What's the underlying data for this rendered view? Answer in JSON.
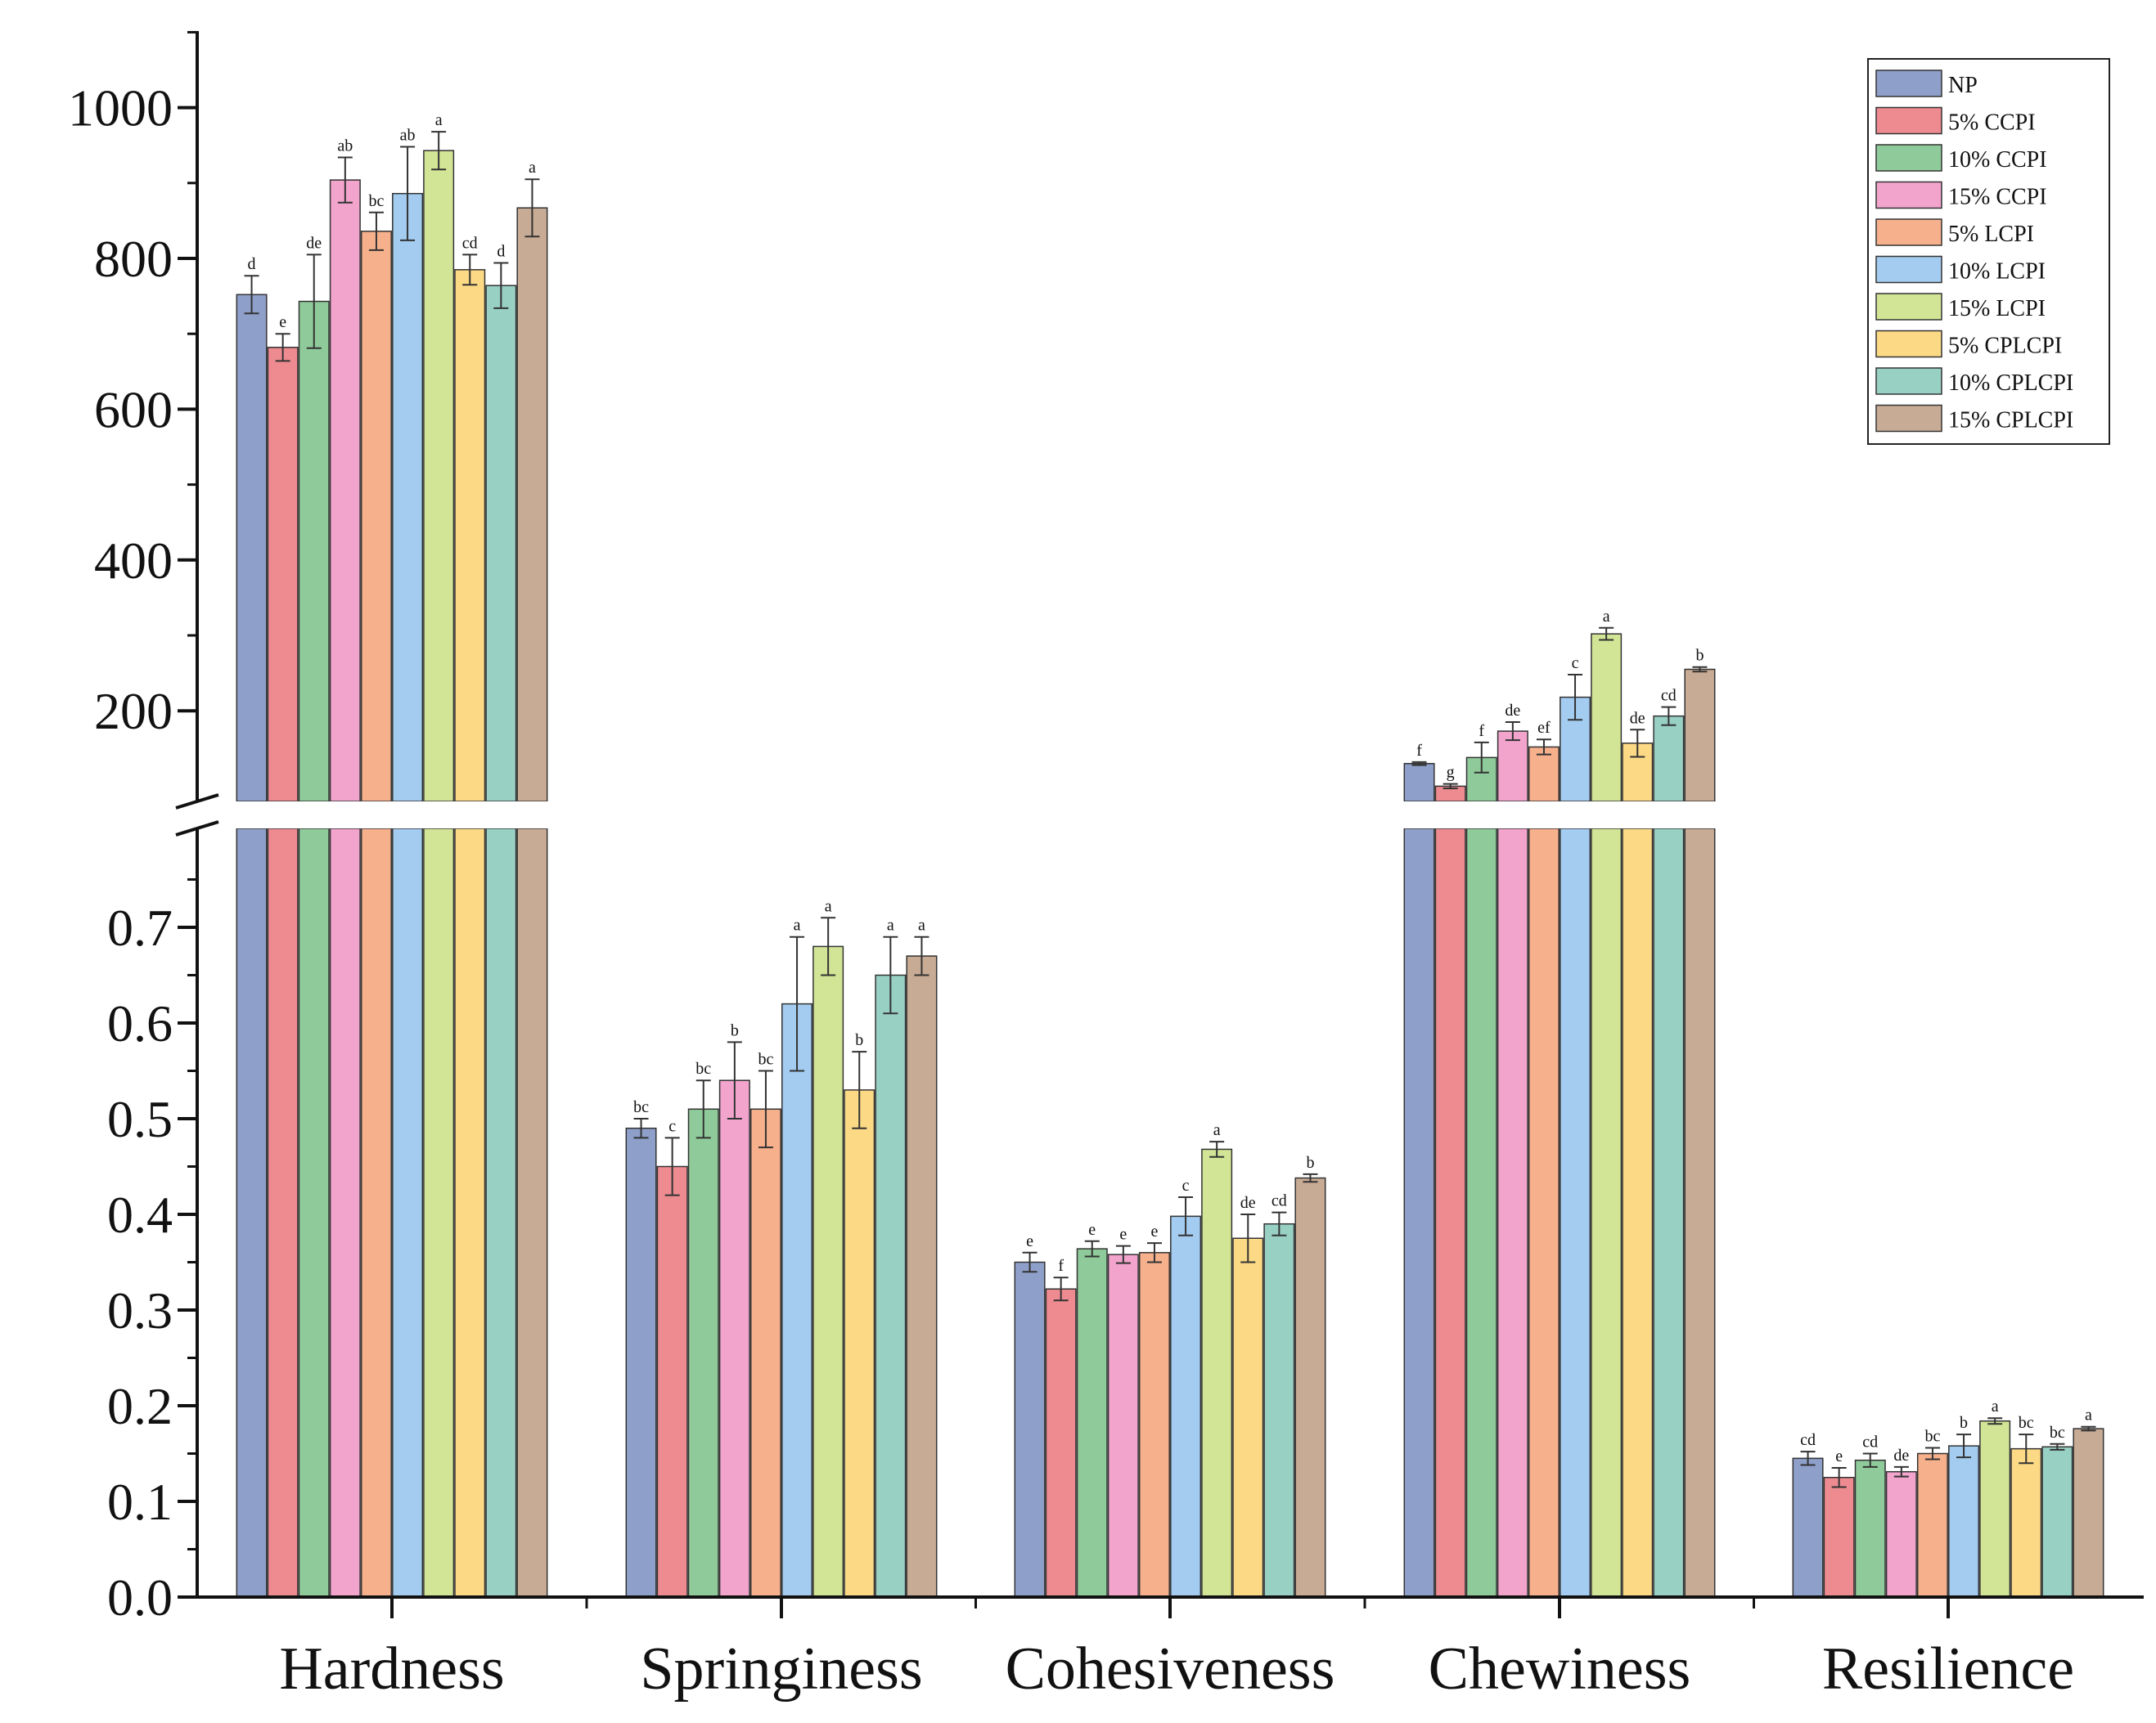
{
  "chart_data": {
    "type": "bar",
    "title": "",
    "xlabel": "",
    "ylabel": "",
    "categories": [
      "Hardness",
      "Springiness",
      "Cohesiveness",
      "Chewiness",
      "Resilience"
    ],
    "axis_break": true,
    "upper_axis": {
      "ylim": [
        100,
        1100
      ],
      "ticks": [
        200,
        400,
        600,
        800,
        1000
      ]
    },
    "lower_axis": {
      "ylim": [
        0,
        0.78
      ],
      "ticks": [
        "0.0",
        "0.1",
        "0.2",
        "0.3",
        "0.4",
        "0.5",
        "0.6",
        "0.7"
      ]
    },
    "legend_position": "top-right",
    "series": [
      {
        "name": "NP",
        "color": "#8e9fca",
        "values": [
          752,
          0.49,
          0.35,
          130,
          0.145
        ],
        "errors": [
          25,
          0.01,
          0.01,
          2,
          0.007
        ],
        "labels": [
          "d",
          "bc",
          "e",
          "f",
          "cd"
        ]
      },
      {
        "name": "5% CCPI",
        "color": "#ee8b91",
        "values": [
          682,
          0.45,
          0.322,
          100,
          0.125
        ],
        "errors": [
          18,
          0.03,
          0.012,
          3,
          0.01
        ],
        "labels": [
          "e",
          "c",
          "f",
          "g",
          "e"
        ]
      },
      {
        "name": "10% CCPI",
        "color": "#8fcb9a",
        "values": [
          743,
          0.51,
          0.364,
          138,
          0.143
        ],
        "errors": [
          62,
          0.03,
          0.008,
          20,
          0.007
        ],
        "labels": [
          "de",
          "bc",
          "e",
          "f",
          "cd"
        ]
      },
      {
        "name": "15% CCPI",
        "color": "#f2a4cd",
        "values": [
          904,
          0.54,
          0.358,
          173,
          0.131
        ],
        "errors": [
          30,
          0.04,
          0.009,
          12,
          0.005
        ],
        "labels": [
          "ab",
          "b",
          "e",
          "de",
          "de"
        ]
      },
      {
        "name": "5% LCPI",
        "color": "#f7b08c",
        "values": [
          836,
          0.51,
          0.36,
          152,
          0.15
        ],
        "errors": [
          25,
          0.04,
          0.01,
          10,
          0.006
        ],
        "labels": [
          "bc",
          "bc",
          "e",
          "ef",
          "bc"
        ]
      },
      {
        "name": "10% LCPI",
        "color": "#a3ccf0",
        "values": [
          886,
          0.62,
          0.398,
          218,
          0.158
        ],
        "errors": [
          62,
          0.07,
          0.02,
          30,
          0.012
        ],
        "labels": [
          "ab",
          "a",
          "c",
          "c",
          "b"
        ]
      },
      {
        "name": "15% LCPI",
        "color": "#d2e596",
        "values": [
          943,
          0.68,
          0.468,
          302,
          0.184
        ],
        "errors": [
          25,
          0.03,
          0.008,
          8,
          0.003
        ],
        "labels": [
          "a",
          "a",
          "a",
          "a",
          "a"
        ]
      },
      {
        "name": "5% CPLCPI",
        "color": "#fbd985",
        "values": [
          785,
          0.53,
          0.375,
          157,
          0.155
        ],
        "errors": [
          20,
          0.04,
          0.025,
          18,
          0.015
        ],
        "labels": [
          "cd",
          "b",
          "de",
          "de",
          "bc"
        ]
      },
      {
        "name": "10% CPLCPI",
        "color": "#98d0c4",
        "values": [
          764,
          0.65,
          0.39,
          193,
          0.157
        ],
        "errors": [
          30,
          0.04,
          0.012,
          12,
          0.003
        ],
        "labels": [
          "d",
          "a",
          "cd",
          "cd",
          "bc"
        ]
      },
      {
        "name": "15% CPLCPI",
        "color": "#c8ab95",
        "values": [
          867,
          0.67,
          0.438,
          255,
          0.176
        ],
        "errors": [
          38,
          0.02,
          0.004,
          3,
          0.002
        ],
        "labels": [
          "a",
          "a",
          "b",
          "b",
          "a"
        ]
      }
    ]
  }
}
